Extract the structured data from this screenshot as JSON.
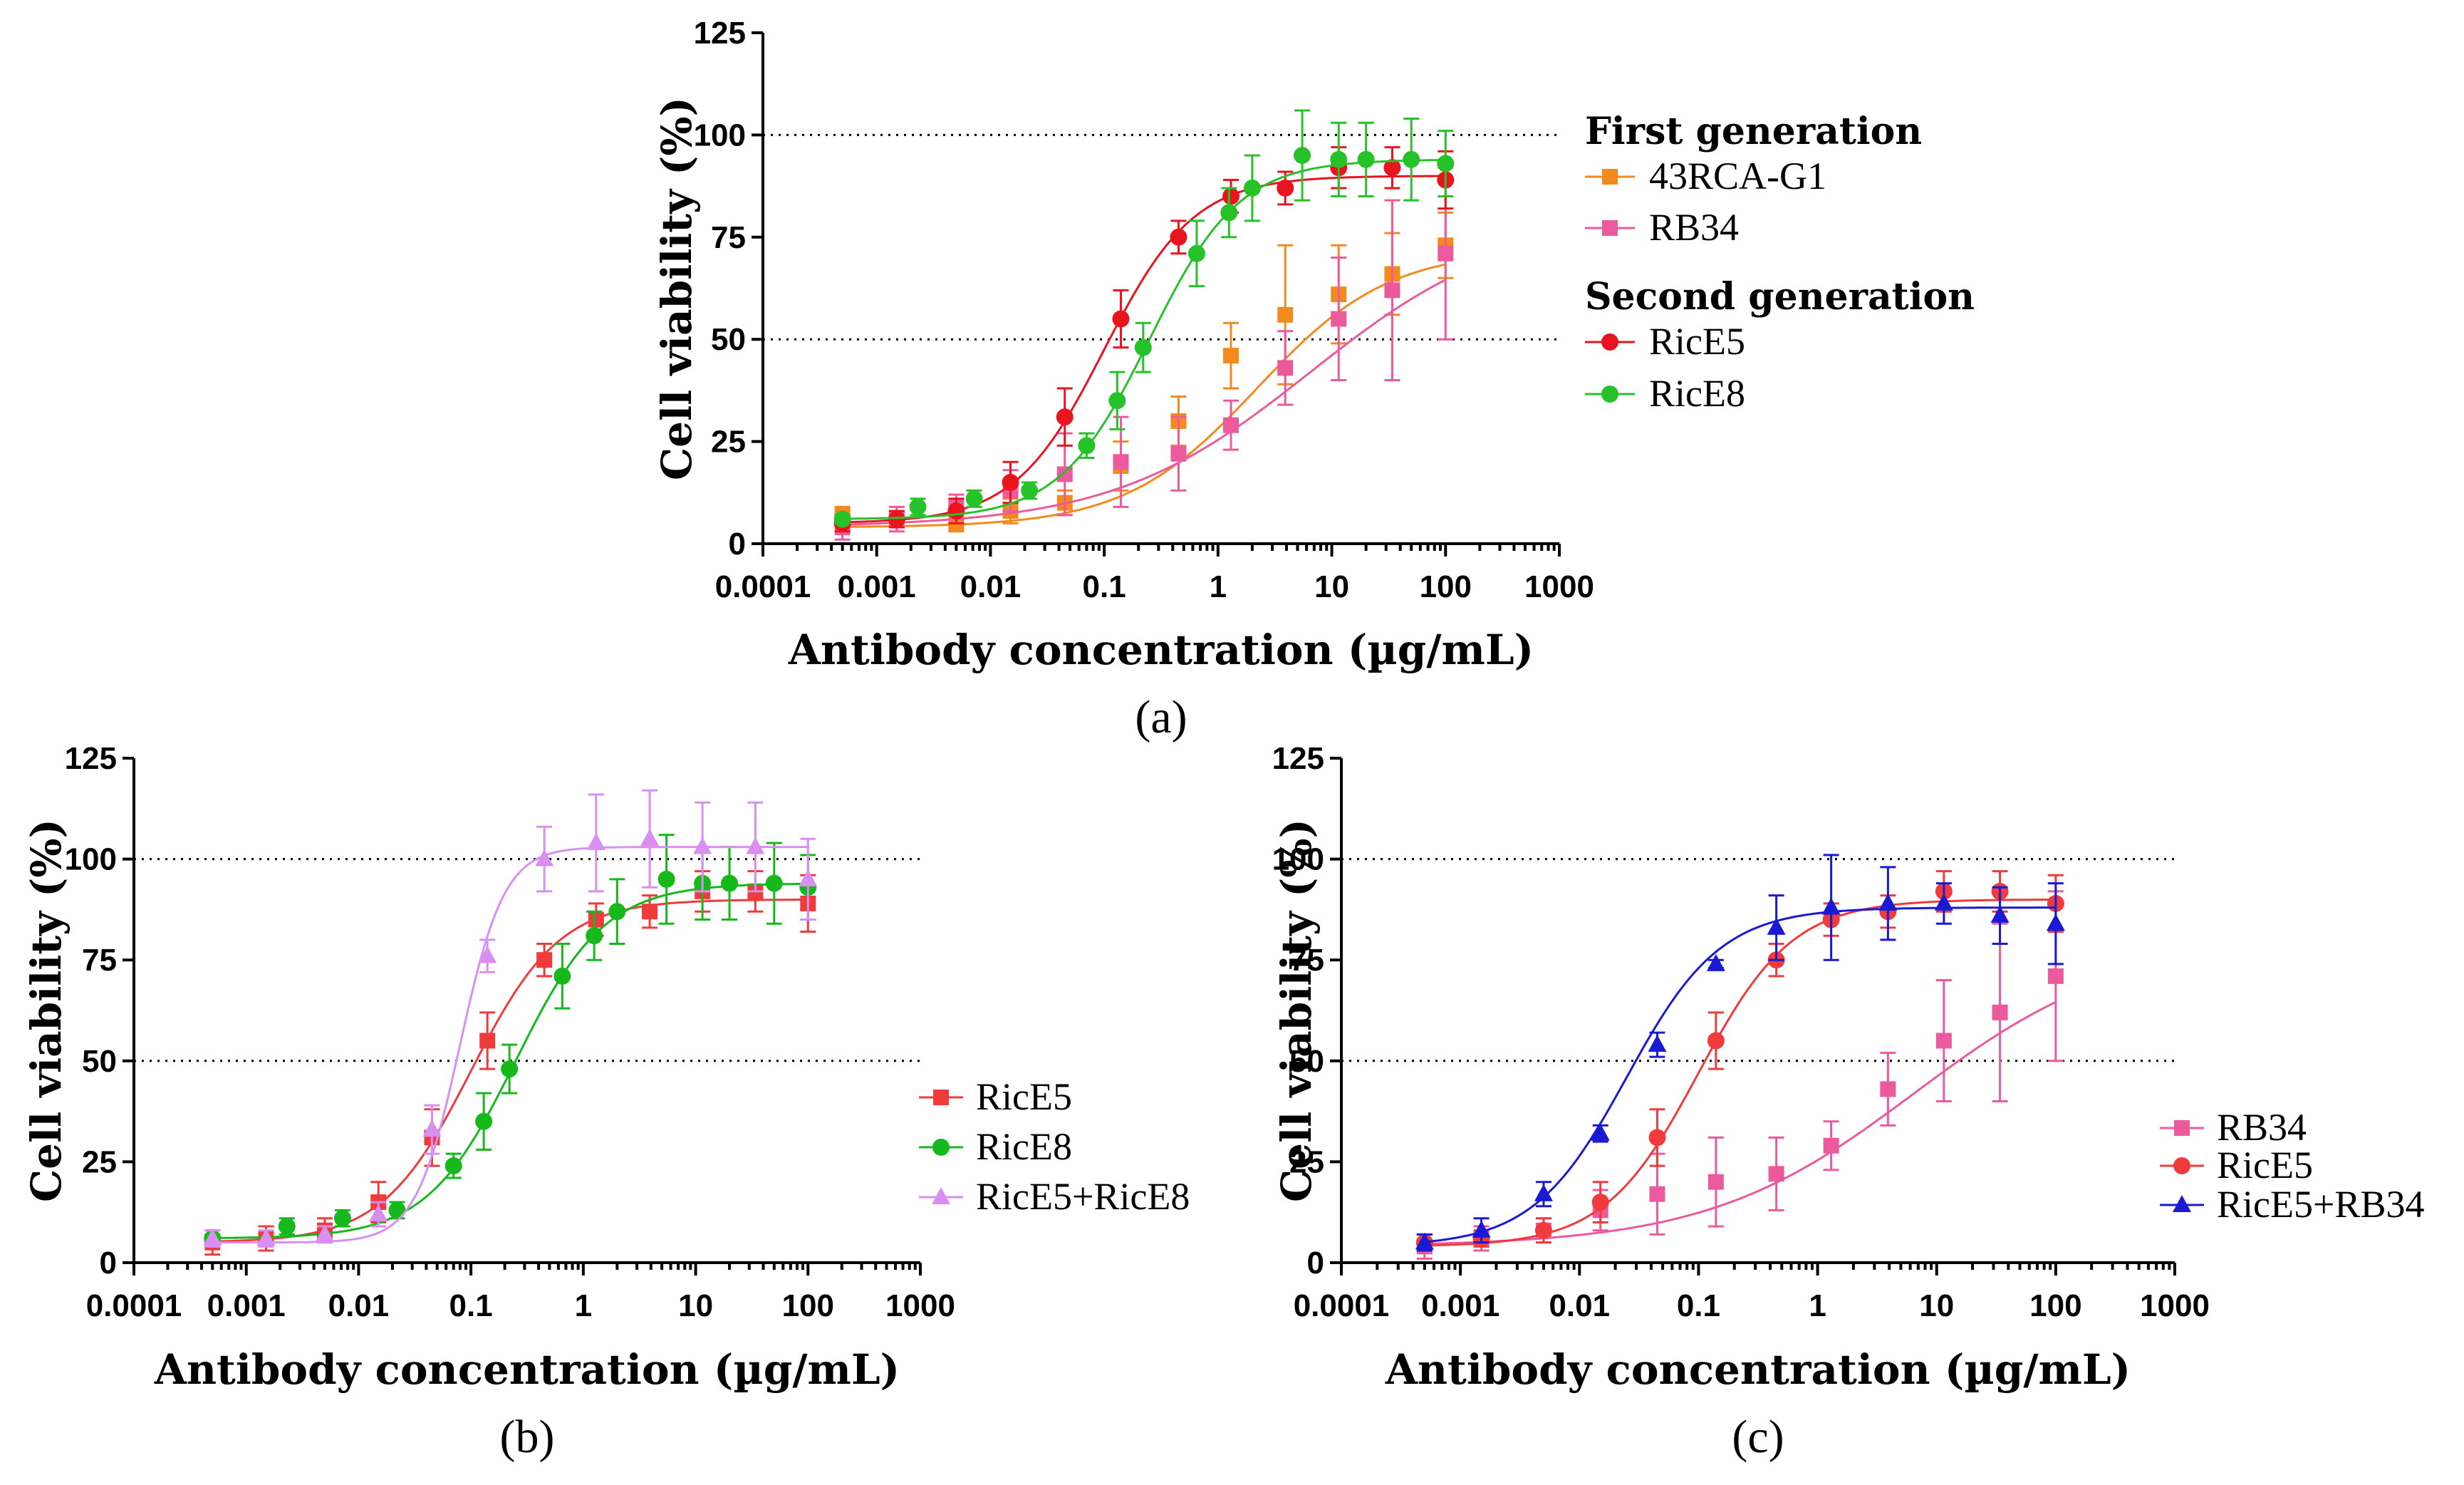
{
  "chart_data": [
    {
      "type": "line",
      "panel_label": "(a)",
      "xscale": "log",
      "xlabel": "Antibody concentration (µg/mL)",
      "ylabel": "Cell  viability (%)",
      "xticks": [
        "0.0001",
        "0.001",
        "0.01",
        "0.1",
        "1",
        "10",
        "100",
        "1000"
      ],
      "yticks": [
        "0",
        "25",
        "50",
        "75",
        "100",
        "125"
      ],
      "xlim": [
        0.0001,
        1000
      ],
      "ylim": [
        0,
        125
      ],
      "reference_lines": [
        50,
        100
      ],
      "legend_groups": [
        {
          "heading": "First generation",
          "entries": [
            "43RCA-G1",
            "RB34"
          ]
        },
        {
          "heading": "Second generation",
          "entries": [
            "RicE5",
            "RicE8"
          ]
        }
      ],
      "series": [
        {
          "name": "43RCA-G1",
          "color": "#f28a1e",
          "marker": "square",
          "x": [
            0.0005,
            0.0015,
            0.005,
            0.015,
            0.045,
            0.14,
            0.45,
            1.3,
            3.9,
            11.5,
            34,
            100
          ],
          "y": [
            7,
            6,
            5,
            8,
            10,
            19,
            30,
            46,
            56,
            61,
            66,
            73
          ],
          "err": [
            2,
            2,
            2,
            3,
            3,
            6,
            6,
            8,
            17,
            12,
            10,
            8
          ],
          "fit": {
            "bottom": 4,
            "top": 72,
            "ec50": 2.2,
            "hill": 0.75
          }
        },
        {
          "name": "RB34",
          "color": "#ec5a9e",
          "marker": "square",
          "x": [
            0.0005,
            0.0015,
            0.005,
            0.015,
            0.045,
            0.14,
            0.45,
            1.3,
            3.9,
            11.5,
            34,
            100
          ],
          "y": [
            4,
            6,
            9,
            13,
            17,
            20,
            22,
            29,
            43,
            55,
            62,
            71
          ],
          "err": [
            3,
            3,
            3,
            5,
            10,
            11,
            9,
            6,
            9,
            15,
            22,
            21
          ],
          "fit": {
            "bottom": 4,
            "top": 80,
            "ec50": 6.5,
            "hill": 0.5
          }
        },
        {
          "name": "RicE5",
          "color": "#e8141e",
          "marker": "circle",
          "x": [
            0.0005,
            0.0015,
            0.005,
            0.015,
            0.045,
            0.14,
            0.45,
            1.3,
            3.9,
            11.5,
            34,
            100
          ],
          "y": [
            5,
            6,
            8,
            15,
            31,
            55,
            75,
            85,
            87,
            92,
            92,
            89
          ],
          "err": [
            2,
            2,
            3,
            5,
            7,
            7,
            4,
            4,
            4,
            5,
            5,
            7
          ],
          "fit": {
            "bottom": 5,
            "top": 90,
            "ec50": 0.1,
            "hill": 1.1
          }
        },
        {
          "name": "RicE8",
          "color": "#27c22a",
          "marker": "circle",
          "x": [
            0.0005,
            0.0023,
            0.0072,
            0.022,
            0.07,
            0.13,
            0.22,
            0.65,
            1.25,
            2,
            5.5,
            11.5,
            20,
            50,
            100
          ],
          "y": [
            6,
            9,
            11,
            13,
            24,
            35,
            48,
            71,
            81,
            87,
            95,
            94,
            94,
            94,
            93
          ],
          "err": [
            1,
            2,
            2,
            2,
            3,
            7,
            6,
            8,
            6,
            8,
            11,
            9,
            9,
            10,
            8
          ],
          "fit": {
            "bottom": 6,
            "top": 94,
            "ec50": 0.25,
            "hill": 1.1
          }
        }
      ]
    },
    {
      "type": "line",
      "panel_label": "(b)",
      "xscale": "log",
      "xlabel": "Antibody concentration (µg/mL)",
      "ylabel": "Cell  viability (%)",
      "xticks": [
        "0.0001",
        "0.001",
        "0.01",
        "0.1",
        "1",
        "10",
        "100",
        "1000"
      ],
      "yticks": [
        "0",
        "25",
        "50",
        "75",
        "100",
        "125"
      ],
      "xlim": [
        0.0001,
        1000
      ],
      "ylim": [
        0,
        125
      ],
      "reference_lines": [
        50,
        100
      ],
      "legend_groups": [
        {
          "heading": "",
          "entries": [
            "RicE5",
            "RicE8",
            "RicE5+RicE8"
          ]
        }
      ],
      "series": [
        {
          "name": "RicE5",
          "color": "#ef3b3b",
          "marker": "square",
          "x": [
            0.0005,
            0.0015,
            0.005,
            0.015,
            0.045,
            0.14,
            0.45,
            1.3,
            3.9,
            11.5,
            34,
            100
          ],
          "y": [
            5,
            6,
            8,
            15,
            31,
            55,
            75,
            85,
            87,
            92,
            92,
            89
          ],
          "err": [
            3,
            3,
            3,
            5,
            7,
            7,
            4,
            4,
            4,
            5,
            5,
            7
          ],
          "fit": {
            "bottom": 5,
            "top": 90,
            "ec50": 0.1,
            "hill": 1.1
          }
        },
        {
          "name": "RicE8",
          "color": "#17b81c",
          "marker": "circle",
          "x": [
            0.0005,
            0.0023,
            0.0072,
            0.022,
            0.07,
            0.13,
            0.22,
            0.65,
            1.25,
            2,
            5.5,
            11.5,
            20,
            50,
            100
          ],
          "y": [
            6,
            9,
            11,
            13,
            24,
            35,
            48,
            71,
            81,
            87,
            95,
            94,
            94,
            94,
            93
          ],
          "err": [
            1,
            2,
            2,
            2,
            3,
            7,
            6,
            8,
            6,
            8,
            11,
            9,
            9,
            10,
            8
          ],
          "fit": {
            "bottom": 6,
            "top": 94,
            "ec50": 0.25,
            "hill": 1.1
          }
        },
        {
          "name": "RicE5+RicE8",
          "color": "#d98ef2",
          "marker": "triangle",
          "x": [
            0.0005,
            0.0015,
            0.005,
            0.015,
            0.045,
            0.14,
            0.45,
            1.3,
            3.9,
            11.5,
            34,
            100
          ],
          "y": [
            6,
            6,
            7,
            12,
            33,
            76,
            100,
            104,
            105,
            103,
            103,
            95
          ],
          "err": [
            2,
            2,
            2,
            3,
            6,
            4,
            8,
            12,
            12,
            11,
            11,
            10
          ],
          "fit": {
            "bottom": 5,
            "top": 103,
            "ec50": 0.08,
            "hill": 2.2
          }
        }
      ]
    },
    {
      "type": "line",
      "panel_label": "(c)",
      "xscale": "log",
      "xlabel": "Antibody concentration (µg/mL)",
      "ylabel": "Cell viability (%)",
      "xticks": [
        "0.0001",
        "0.001",
        "0.01",
        "0.1",
        "1",
        "10",
        "100",
        "1000"
      ],
      "yticks": [
        "0",
        "25",
        "50",
        "75",
        "100",
        "125"
      ],
      "xlim": [
        0.0001,
        1000
      ],
      "ylim": [
        0,
        125
      ],
      "reference_lines": [
        50,
        100
      ],
      "legend_groups": [
        {
          "heading": "",
          "entries": [
            "RB34",
            "RicE5",
            "RicE5+RB34"
          ]
        }
      ],
      "series": [
        {
          "name": "RB34",
          "color": "#ec5a9e",
          "marker": "square",
          "x": [
            0.0005,
            0.0015,
            0.005,
            0.015,
            0.045,
            0.14,
            0.45,
            1.3,
            3.9,
            11.5,
            34,
            100
          ],
          "y": [
            4,
            6,
            8,
            13,
            17,
            20,
            22,
            29,
            43,
            55,
            62,
            71
          ],
          "err": [
            3,
            3,
            3,
            5,
            10,
            11,
            9,
            6,
            9,
            15,
            22,
            21
          ],
          "fit": {
            "bottom": 4,
            "top": 80,
            "ec50": 6.5,
            "hill": 0.5
          }
        },
        {
          "name": "RicE5",
          "color": "#ef3b3b",
          "marker": "circle",
          "x": [
            0.0005,
            0.0015,
            0.005,
            0.015,
            0.045,
            0.14,
            0.45,
            1.3,
            3.9,
            11.5,
            34,
            100
          ],
          "y": [
            5,
            6,
            8,
            15,
            31,
            55,
            75,
            85,
            87,
            92,
            92,
            89
          ],
          "err": [
            2,
            2,
            3,
            5,
            7,
            7,
            4,
            4,
            4,
            5,
            5,
            7
          ],
          "fit": {
            "bottom": 4,
            "top": 90,
            "ec50": 0.1,
            "hill": 1.1
          }
        },
        {
          "name": "RicE5+RB34",
          "color": "#1a1ad4",
          "marker": "triangle",
          "x": [
            0.0005,
            0.0015,
            0.005,
            0.015,
            0.045,
            0.14,
            0.45,
            1.3,
            3.9,
            11.5,
            34,
            100
          ],
          "y": [
            5,
            8,
            17,
            32,
            54,
            74,
            83,
            88,
            89,
            89,
            86,
            84
          ],
          "err": [
            2,
            3,
            3,
            2,
            3,
            1,
            8,
            13,
            9,
            5,
            7,
            10
          ],
          "fit": {
            "bottom": 4,
            "top": 88,
            "ec50": 0.025,
            "hill": 1.1
          }
        }
      ]
    }
  ]
}
